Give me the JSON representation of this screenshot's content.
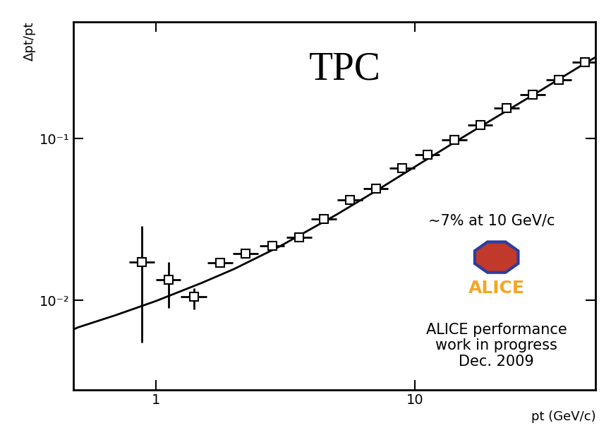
{
  "chart_data": {
    "type": "scatter",
    "title": "TPC",
    "x_label": "pt (GeV/c)",
    "y_label": "Δpt/pt",
    "annotations": [
      "~7% at 10 GeV/c",
      "ALICE",
      "ALICE performance\nwork in progress\nDec. 2009"
    ],
    "log": true,
    "xlim": [
      0.48,
      50
    ],
    "ylim": [
      0.0028,
      0.53
    ],
    "xticks": [
      1,
      10
    ],
    "yticks": [
      {
        "value": 0.01,
        "label": "10⁻²"
      },
      {
        "value": 0.1,
        "label": "10⁻¹"
      }
    ],
    "series": [
      {
        "type": "scatter",
        "color": "#000000",
        "marker": "square",
        "x": [
          0.88,
          1.12,
          1.4,
          1.77,
          2.22,
          2.81,
          3.58,
          4.45,
          5.62,
          7.07,
          8.95,
          11.2,
          14.2,
          17.9,
          22.6,
          28.5,
          36.0,
          45.3
        ],
        "values": [
          0.0173,
          0.0134,
          0.0105,
          0.017,
          0.0195,
          0.0218,
          0.0246,
          0.0319,
          0.0419,
          0.0491,
          0.0657,
          0.0794,
          0.098,
          0.122,
          0.154,
          0.188,
          0.232,
          0.298
        ],
        "x_error_low": [
          0.09,
          0.12,
          0.15,
          0.19,
          0.24,
          0.3,
          0.38,
          0.47,
          0.59,
          0.75,
          0.95,
          1.2,
          1.5,
          1.9,
          2.4,
          3.0,
          3.8,
          4.8
        ],
        "x_error_high": [
          0.11,
          0.13,
          0.17,
          0.21,
          0.26,
          0.33,
          0.42,
          0.53,
          0.66,
          0.83,
          1.05,
          1.3,
          1.7,
          2.1,
          2.7,
          3.4,
          4.2,
          5.3
        ],
        "error_low": [
          0.0118,
          0.0044,
          0.0017,
          0.0008,
          0.0009,
          0.0009,
          0.001,
          0.0012,
          0.0015,
          0.0017,
          0.0022,
          0.0026,
          0.003,
          0.0037,
          0.0045,
          0.0055,
          0.0068,
          0.0085
        ],
        "error_high": [
          0.0114,
          0.0039,
          0.0014,
          0.0008,
          0.0009,
          0.0009,
          0.001,
          0.0012,
          0.0015,
          0.0017,
          0.0022,
          0.0026,
          0.003,
          0.0037,
          0.0045,
          0.0055,
          0.0068,
          0.0085
        ]
      },
      {
        "type": "line",
        "color": "#000000",
        "line_style": "solid",
        "x": [
          0.48,
          0.5,
          0.7,
          1.0,
          1.5,
          2.0,
          3.0,
          5.0,
          7.0,
          10.0,
          15.0,
          20.0,
          30.0,
          45.0,
          50.0
        ],
        "values": [
          0.0066,
          0.0068,
          0.0081,
          0.0099,
          0.0128,
          0.0156,
          0.0215,
          0.034,
          0.047,
          0.067,
          0.1,
          0.132,
          0.195,
          0.29,
          0.32
        ]
      }
    ]
  }
}
